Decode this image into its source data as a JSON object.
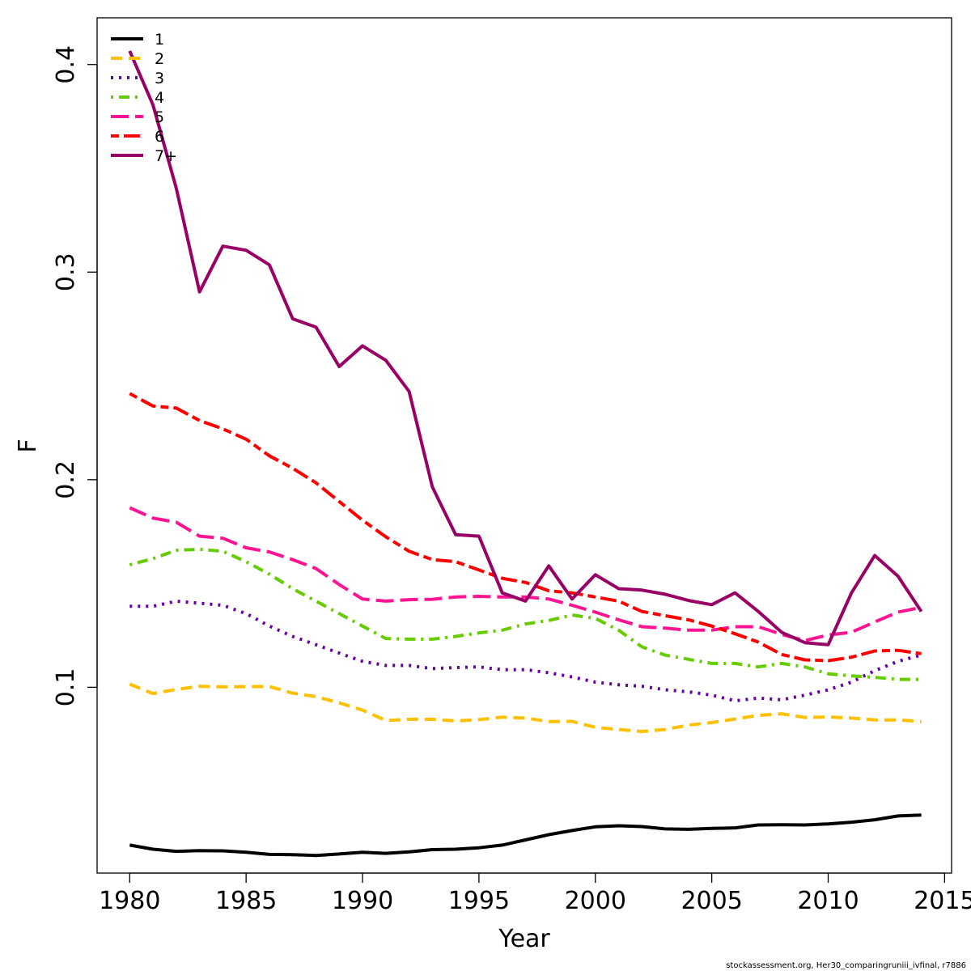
{
  "chart_data": {
    "type": "line",
    "xlabel": "Year",
    "ylabel": "F",
    "xlim": [
      1978.6,
      2015.3
    ],
    "ylim": [
      0.0105,
      0.4225
    ],
    "x_ticks": [
      1980,
      1985,
      1990,
      1995,
      2000,
      2005,
      2010,
      2015
    ],
    "y_ticks": [
      0.1,
      0.2,
      0.3,
      0.4
    ],
    "x_tick_labels": [
      "1980",
      "1985",
      "1990",
      "1995",
      "2000",
      "2005",
      "2010",
      "2015"
    ],
    "y_tick_labels": [
      "0.1",
      "0.2",
      "0.3",
      "0.4"
    ],
    "legend_position": "top-left",
    "grid": false,
    "x": [
      1980,
      1981,
      1982,
      1983,
      1984,
      1985,
      1986,
      1987,
      1988,
      1989,
      1990,
      1991,
      1992,
      1993,
      1994,
      1995,
      1996,
      1997,
      1998,
      1999,
      2000,
      2001,
      2002,
      2003,
      2004,
      2005,
      2006,
      2007,
      2008,
      2009,
      2010,
      2011,
      2012,
      2013,
      2014
    ],
    "series": [
      {
        "name": "1",
        "color": "#000000",
        "dash": "solid",
        "values": [
          0.024,
          0.022,
          0.021,
          0.0213,
          0.0212,
          0.0205,
          0.0195,
          0.0194,
          0.019,
          0.0197,
          0.0205,
          0.02,
          0.0207,
          0.0218,
          0.022,
          0.0227,
          0.024,
          0.0265,
          0.029,
          0.031,
          0.0328,
          0.0333,
          0.0329,
          0.0318,
          0.0316,
          0.032,
          0.0323,
          0.0337,
          0.0338,
          0.0337,
          0.0342,
          0.035,
          0.0362,
          0.038,
          0.0385
        ]
      },
      {
        "name": "2",
        "color": "#ffc000",
        "dash": "dashed",
        "values": [
          0.1015,
          0.097,
          0.099,
          0.1005,
          0.1002,
          0.1003,
          0.1004,
          0.0972,
          0.0955,
          0.0925,
          0.089,
          0.084,
          0.0846,
          0.0846,
          0.0838,
          0.0844,
          0.0856,
          0.0852,
          0.0835,
          0.0836,
          0.0807,
          0.0797,
          0.0787,
          0.0797,
          0.0818,
          0.083,
          0.0847,
          0.0865,
          0.0872,
          0.0855,
          0.0857,
          0.0852,
          0.0843,
          0.0843,
          0.0835
        ]
      },
      {
        "name": "3",
        "color": "#6600aa",
        "dash": "dotted",
        "values": [
          0.139,
          0.139,
          0.1415,
          0.1405,
          0.1395,
          0.1355,
          0.1295,
          0.1245,
          0.1205,
          0.1165,
          0.1125,
          0.1105,
          0.1105,
          0.109,
          0.1095,
          0.1098,
          0.1085,
          0.1085,
          0.107,
          0.105,
          0.1025,
          0.1012,
          0.1005,
          0.0988,
          0.0978,
          0.0962,
          0.0935,
          0.0948,
          0.094,
          0.0962,
          0.0988,
          0.1025,
          0.108,
          0.1125,
          0.1155
        ]
      },
      {
        "name": "4",
        "color": "#66cc00",
        "dash": "dashdot",
        "values": [
          0.159,
          0.162,
          0.166,
          0.1665,
          0.1655,
          0.1605,
          0.1545,
          0.1475,
          0.1415,
          0.1355,
          0.1295,
          0.1235,
          0.1232,
          0.1232,
          0.1245,
          0.1262,
          0.1275,
          0.1305,
          0.1322,
          0.1348,
          0.1332,
          0.1275,
          0.1195,
          0.1155,
          0.1135,
          0.1115,
          0.1115,
          0.1098,
          0.1115,
          0.1098,
          0.1065,
          0.1055,
          0.1048,
          0.1038,
          0.1038
        ]
      },
      {
        "name": "5",
        "color": "#ff1493",
        "dash": "longdash",
        "values": [
          0.1865,
          0.1815,
          0.1795,
          0.1728,
          0.1718,
          0.1672,
          0.1652,
          0.1615,
          0.1572,
          0.1495,
          0.1425,
          0.1415,
          0.1422,
          0.1424,
          0.1435,
          0.1438,
          0.1435,
          0.1435,
          0.1425,
          0.1395,
          0.1362,
          0.1325,
          0.1292,
          0.1285,
          0.1275,
          0.1275,
          0.1292,
          0.1292,
          0.1255,
          0.1225,
          0.1252,
          0.1265,
          0.1315,
          0.1362,
          0.1385
        ]
      },
      {
        "name": "6",
        "color": "#ff0000",
        "dash": "twodash",
        "values": [
          0.2415,
          0.2355,
          0.2345,
          0.2285,
          0.2245,
          0.2195,
          0.2115,
          0.2055,
          0.1985,
          0.1895,
          0.1805,
          0.1725,
          0.1655,
          0.1615,
          0.1605,
          0.1565,
          0.1525,
          0.1505,
          0.1465,
          0.1455,
          0.1435,
          0.1415,
          0.1365,
          0.1345,
          0.1325,
          0.1295,
          0.1258,
          0.1218,
          0.1158,
          0.1132,
          0.1128,
          0.1145,
          0.1175,
          0.1178,
          0.1162
        ]
      },
      {
        "name": "7+",
        "color": "#990066",
        "dash": "solid",
        "values": [
          0.4065,
          0.3805,
          0.3405,
          0.2905,
          0.3125,
          0.3105,
          0.3035,
          0.2775,
          0.2735,
          0.2545,
          0.2645,
          0.2575,
          0.2425,
          0.1965,
          0.1735,
          0.1728,
          0.1455,
          0.1415,
          0.1585,
          0.1425,
          0.1542,
          0.1475,
          0.1468,
          0.1448,
          0.1418,
          0.1398,
          0.1455,
          0.1365,
          0.1265,
          0.1215,
          0.1205,
          0.1455,
          0.1635,
          0.1535,
          0.1365
        ]
      }
    ]
  },
  "footer": {
    "credit": "stockassessment.org, Her30_comparingruniii_ivfinal, r7886"
  }
}
